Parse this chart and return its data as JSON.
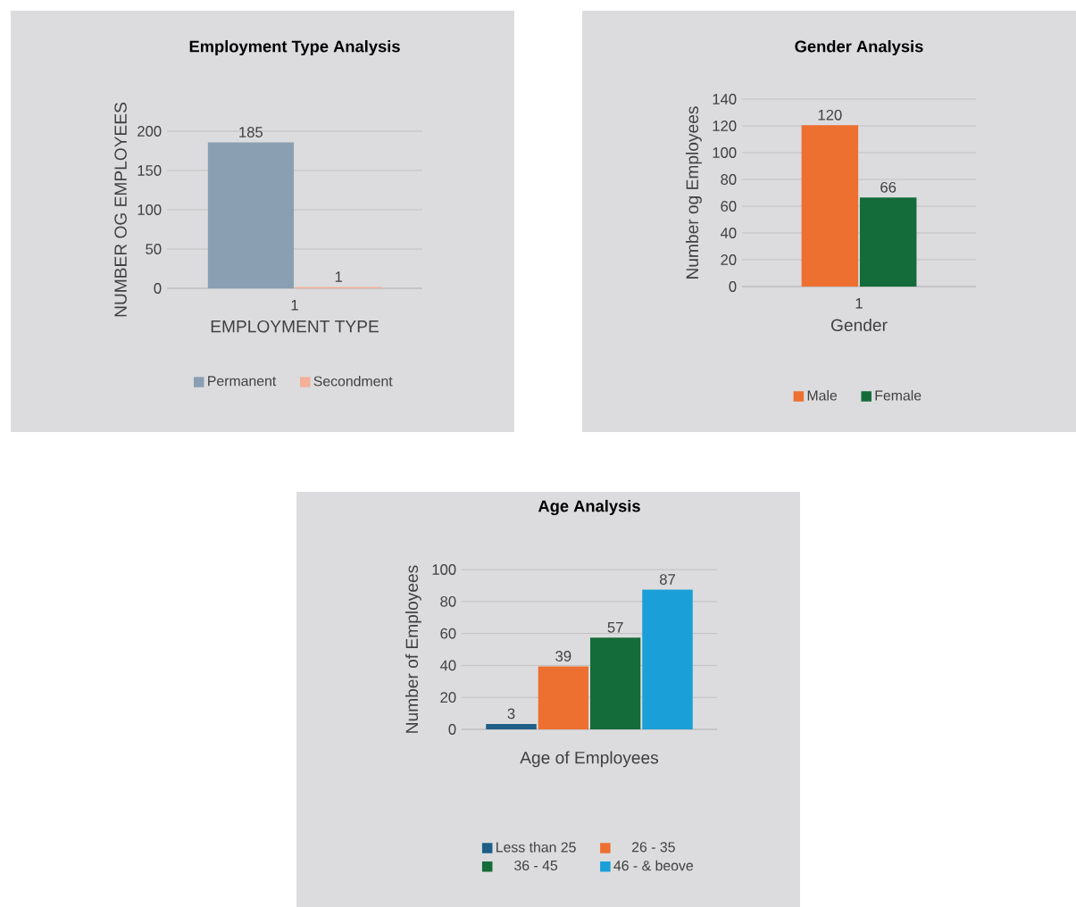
{
  "chart_data": [
    {
      "type": "bar",
      "title": "Employment Type Analysis",
      "xlabel": "EMPLOYMENT TYPE",
      "ylabel": "NUMBER OG EMPLOYEES",
      "categories": [
        "1"
      ],
      "series": [
        {
          "name": "Permanent",
          "color": "#8a9fb2",
          "values": [
            185
          ]
        },
        {
          "name": "Secondment",
          "color": "#f4b09a",
          "values": [
            1
          ]
        }
      ],
      "ylim": [
        0,
        200
      ],
      "yticks": [
        0,
        50,
        100,
        150,
        200
      ],
      "grid": "y",
      "legend": "bottom",
      "data_labels": true
    },
    {
      "type": "bar",
      "title": "Gender Analysis",
      "xlabel": "Gender",
      "ylabel": "Number og Employees",
      "categories": [
        "1"
      ],
      "series": [
        {
          "name": "Male",
          "color": "#ed7031",
          "values": [
            120
          ]
        },
        {
          "name": "Female",
          "color": "#146c3a",
          "values": [
            66
          ]
        }
      ],
      "ylim": [
        0,
        140
      ],
      "yticks": [
        0,
        20,
        40,
        60,
        80,
        100,
        120,
        140
      ],
      "grid": "y",
      "legend": "bottom",
      "data_labels": true
    },
    {
      "type": "bar",
      "title": "Age Analysis",
      "xlabel": "Age of Employees",
      "ylabel": "Number of Employees",
      "categories": [
        null
      ],
      "series": [
        {
          "name": "Less than 25",
          "color": "#1f5f86",
          "values": [
            3
          ]
        },
        {
          "name": "26 - 35",
          "color": "#ed7031",
          "values": [
            39
          ]
        },
        {
          "name": "36 - 45",
          "color": "#146c3a",
          "values": [
            57
          ]
        },
        {
          "name": "46 - & beove",
          "color": "#1b9fd8",
          "values": [
            87
          ]
        }
      ],
      "ylim": [
        0,
        100
      ],
      "yticks": [
        0,
        20,
        40,
        60,
        80,
        100
      ],
      "grid": "y",
      "legend": "bottom",
      "data_labels": true
    }
  ]
}
